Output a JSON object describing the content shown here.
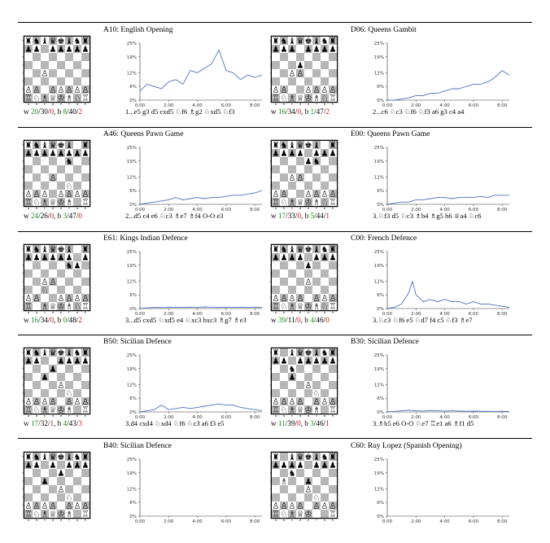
{
  "panels": [
    {
      "title": "A10: English Opening",
      "fen": "rnbqkbnr/pp1ppppp/8/8/2P5/8/PP1PPPPP/RNBQKBNR",
      "stats": {
        "w_wins": "20",
        "w_draws": "30",
        "w_losses": "0",
        "b_wins": "8",
        "b_draws": "40",
        "b_losses": "2"
      },
      "moves": "1...e5 g3 d5 cxd5 ♘f6 ♗g2 ♘xd5 ♘f3",
      "chart_data": {
        "type": "line",
        "xlim": [
          0,
          510
        ],
        "ylim": [
          0,
          25
        ],
        "xticks": [
          0,
          120,
          240,
          360,
          480
        ],
        "xtick_labels": [
          "0:00",
          "2:00",
          "4:00",
          "6:00",
          "8:00"
        ],
        "yticks": [
          0,
          6,
          12,
          19,
          25
        ],
        "ytick_labels": [
          "0%",
          "6%",
          "12%",
          "19%",
          "25%"
        ],
        "x": [
          0,
          30,
          60,
          90,
          120,
          150,
          180,
          210,
          240,
          270,
          300,
          330,
          360,
          390,
          420,
          450,
          480,
          510
        ],
        "y": [
          4,
          7,
          6,
          5,
          8,
          9,
          7,
          13,
          12,
          14,
          16,
          22,
          13,
          12,
          9,
          11,
          10,
          11
        ]
      }
    },
    {
      "title": "D06: Queens Gambit",
      "fen": "rnbqkbnr/ppp1pppp/8/3p4/2PP4/8/PP2PPPP/RNBQKBNR",
      "stats": {
        "w_wins": "16",
        "w_draws": "34",
        "w_losses": "0",
        "b_wins": "1",
        "b_draws": "47",
        "b_losses": "2"
      },
      "moves": "2...c6 ♘c3 ♘f6 ♘f3 a6 g3 c4 a4",
      "chart_data": {
        "type": "line",
        "xlim": [
          0,
          510
        ],
        "ylim": [
          0,
          25
        ],
        "xticks": [
          0,
          120,
          240,
          360,
          480
        ],
        "xtick_labels": [
          "0:00",
          "2:00",
          "4:00",
          "6:00",
          "8:00"
        ],
        "yticks": [
          0,
          6,
          12,
          19,
          25
        ],
        "ytick_labels": [
          "0%",
          "6%",
          "12%",
          "19%",
          "25%"
        ],
        "x": [
          0,
          30,
          60,
          90,
          120,
          150,
          180,
          210,
          240,
          270,
          300,
          330,
          360,
          390,
          420,
          450,
          480,
          510
        ],
        "y": [
          0,
          0,
          0.5,
          1,
          2,
          2,
          3,
          3,
          4,
          5,
          5,
          6,
          7,
          7,
          8,
          10,
          13,
          11
        ]
      }
    },
    {
      "title": "A46: Queens Pawn Game",
      "fen": "rnbqkb1r/pppppppp/5n2/8/3P4/5N2/PPP1PPPP/RNBQKB1R",
      "stats": {
        "w_wins": "24",
        "w_draws": "26",
        "w_losses": "0",
        "b_wins": "3",
        "b_draws": "47",
        "b_losses": "0"
      },
      "moves": "2...d5 c4 e6 ♘c3 ♗e7 ♗f4 O-O e3",
      "chart_data": {
        "type": "line",
        "xlim": [
          0,
          510
        ],
        "ylim": [
          0,
          25
        ],
        "xticks": [
          0,
          120,
          240,
          360,
          480
        ],
        "xtick_labels": [
          "0:00",
          "2:00",
          "4:00",
          "6:00",
          "8:00"
        ],
        "yticks": [
          0,
          6,
          12,
          19,
          25
        ],
        "ytick_labels": [
          "0%",
          "6%",
          "12%",
          "19%",
          "25%"
        ],
        "x": [
          0,
          30,
          60,
          90,
          120,
          150,
          180,
          210,
          240,
          270,
          300,
          330,
          360,
          390,
          420,
          450,
          480,
          510
        ],
        "y": [
          0,
          0.5,
          1,
          1.5,
          2,
          3,
          2,
          2.5,
          3,
          2.5,
          3,
          3,
          3.5,
          4,
          4,
          4.5,
          5,
          6
        ]
      }
    },
    {
      "title": "E00: Queens Pawn Game",
      "fen": "rnbqkb1r/pppp1ppp/4pn2/8/2PP4/8/PP2PPPP/RNBQKBNR",
      "stats": {
        "w_wins": "17",
        "w_draws": "33",
        "w_losses": "0",
        "b_wins": "5",
        "b_draws": "44",
        "b_losses": "1"
      },
      "moves": "3.♘f3 d5 ♘c3 ♗b4 ♗g5 h6 ♕a4 ♘c6",
      "chart_data": {
        "type": "line",
        "xlim": [
          0,
          510
        ],
        "ylim": [
          0,
          25
        ],
        "xticks": [
          0,
          120,
          240,
          360,
          480
        ],
        "xtick_labels": [
          "0:00",
          "2:00",
          "4:00",
          "6:00",
          "8:00"
        ],
        "yticks": [
          0,
          6,
          12,
          19,
          25
        ],
        "ytick_labels": [
          "0%",
          "6%",
          "12%",
          "19%",
          "25%"
        ],
        "x": [
          0,
          30,
          60,
          90,
          120,
          150,
          180,
          210,
          240,
          270,
          300,
          330,
          360,
          390,
          420,
          450,
          480,
          510
        ],
        "y": [
          0,
          0.5,
          1,
          1,
          2,
          2,
          2.5,
          3,
          3,
          2.5,
          3,
          3,
          3,
          3.5,
          3,
          4,
          4,
          4
        ]
      }
    },
    {
      "title": "E61: Kings Indian Defence",
      "fen": "rnbqkb1r/pppppp1p/5np1/8/2PP4/2N5/PP2PPPP/R1BQKBNR",
      "stats": {
        "w_wins": "16",
        "w_draws": "34",
        "w_losses": "0",
        "b_wins": "0",
        "b_draws": "48",
        "b_losses": "2"
      },
      "moves": "3...d5 cxd5 ♘xd5 e4 ♘xc3 bxc3 ♗g7 ♗e3",
      "chart_data": {
        "type": "line",
        "xlim": [
          0,
          510
        ],
        "ylim": [
          0,
          25
        ],
        "xticks": [
          0,
          120,
          240,
          360,
          480
        ],
        "xtick_labels": [
          "0:00",
          "2:00",
          "4:00",
          "6:00",
          "8:00"
        ],
        "yticks": [
          0,
          6,
          12,
          19,
          25
        ],
        "ytick_labels": [
          "0%",
          "6%",
          "12%",
          "19%",
          "25%"
        ],
        "x": [
          0,
          30,
          60,
          90,
          120,
          150,
          180,
          210,
          240,
          270,
          300,
          330,
          360,
          390,
          420,
          450,
          480,
          510
        ],
        "y": [
          0,
          0.3,
          0.5,
          0.4,
          0.6,
          0.5,
          0.5,
          0.6,
          0.5,
          0.7,
          0.6,
          0.5,
          0.6,
          0.5,
          0.6,
          0.5,
          0.6,
          0.5
        ]
      }
    },
    {
      "title": "C00: French Defence",
      "fen": "rnbqkbnr/pppp1ppp/4p3/8/4P3/8/PPPP1PPP/RNBQKBNR",
      "stats": {
        "w_wins": "39",
        "w_draws": "11",
        "w_losses": "0",
        "b_wins": "4",
        "b_draws": "46",
        "b_losses": "0"
      },
      "moves": "3.♘c3 ♘f6 e5 ♘d7 f4 c5 ♘f3 ♗e7",
      "chart_data": {
        "type": "line",
        "xlim": [
          0,
          510
        ],
        "ylim": [
          0,
          25
        ],
        "xticks": [
          0,
          120,
          240,
          360,
          480
        ],
        "xtick_labels": [
          "0:00",
          "2:00",
          "4:00",
          "6:00",
          "8:00"
        ],
        "yticks": [
          0,
          6,
          12,
          19,
          25
        ],
        "ytick_labels": [
          "0%",
          "6%",
          "12%",
          "19%",
          "25%"
        ],
        "x": [
          0,
          30,
          60,
          90,
          105,
          120,
          150,
          180,
          210,
          240,
          270,
          300,
          330,
          360,
          390,
          420,
          450,
          480,
          510
        ],
        "y": [
          0,
          0.5,
          2,
          7,
          12,
          6,
          3,
          4,
          3,
          4,
          3,
          3,
          2,
          3,
          2,
          2,
          1.5,
          1,
          0.5
        ]
      }
    },
    {
      "title": "B50: Sicilian Defence",
      "fen": "rnbqkbnr/pp2pppp/3p4/2p5/4P3/5N2/PPPP1PPP/RNBQKB1R",
      "stats": {
        "w_wins": "17",
        "w_draws": "32",
        "w_losses": "1",
        "b_wins": "4",
        "b_draws": "43",
        "b_losses": "3"
      },
      "moves": "3.d4 cxd4 ♘xd4 ♘f6 ♘c3 a6 f3 e5",
      "chart_data": {
        "type": "line",
        "xlim": [
          0,
          510
        ],
        "ylim": [
          0,
          25
        ],
        "xticks": [
          0,
          120,
          240,
          360,
          480
        ],
        "xtick_labels": [
          "0:00",
          "2:00",
          "4:00",
          "6:00",
          "8:00"
        ],
        "yticks": [
          0,
          6,
          12,
          19,
          25
        ],
        "ytick_labels": [
          "0%",
          "6%",
          "12%",
          "19%",
          "25%"
        ],
        "x": [
          0,
          30,
          60,
          90,
          120,
          150,
          180,
          210,
          240,
          270,
          300,
          330,
          360,
          390,
          420,
          450,
          480,
          510
        ],
        "y": [
          0,
          0.5,
          1,
          3,
          1,
          1.5,
          2,
          1.5,
          2,
          2.5,
          3,
          3.5,
          3,
          3,
          2,
          1.5,
          1,
          0.5
        ]
      }
    },
    {
      "title": "B30: Sicilian Defence",
      "fen": "r1bqkbnr/pp1ppppp/2n5/2p5/4P3/5N2/PPPP1PPP/RNBQKB1R",
      "stats": {
        "w_wins": "11",
        "w_draws": "39",
        "w_losses": "0",
        "b_wins": "3",
        "b_draws": "46",
        "b_losses": "1"
      },
      "moves": "3.♗b5 e6 O-O ♘e7 ♖e1 a6 ♗f1 d5",
      "chart_data": {
        "type": "line",
        "xlim": [
          0,
          510
        ],
        "ylim": [
          0,
          25
        ],
        "xticks": [
          0,
          120,
          240,
          360,
          480
        ],
        "xtick_labels": [
          "0:00",
          "2:00",
          "4:00",
          "6:00",
          "8:00"
        ],
        "yticks": [
          0,
          6,
          12,
          19,
          25
        ],
        "ytick_labels": [
          "0%",
          "6%",
          "12%",
          "19%",
          "25%"
        ],
        "x": [
          0,
          30,
          60,
          90,
          120,
          150,
          180,
          210,
          240,
          270,
          300,
          330,
          360,
          390,
          420,
          450,
          480,
          510
        ],
        "y": [
          0,
          0.2,
          0.5,
          0.8,
          0.5,
          0.4,
          0.6,
          0.5,
          0.4,
          0.5,
          0.4,
          0.3,
          0.4,
          0.3,
          0.3,
          0.2,
          0.3,
          0.2
        ]
      }
    },
    {
      "title": "B40: Sicilian Defence",
      "fen": "rnbqkbnr/pp1p1ppp/4p3/2p5/4P3/5N2/PPPP1PPP/RNBQKB1R",
      "stats": null,
      "moves": "",
      "chart_data": {
        "type": "line",
        "xlim": [
          0,
          510
        ],
        "ylim": [
          0,
          25
        ],
        "xticks": [
          0,
          120,
          240,
          360,
          480
        ],
        "xtick_labels": [
          "0:00",
          "2:00",
          "4:00",
          "6:00",
          "8:00"
        ],
        "yticks": [
          0,
          6,
          12,
          19,
          25
        ],
        "ytick_labels": [
          "0%",
          "6%",
          "12%",
          "19%",
          "25%"
        ],
        "x": [],
        "y": []
      }
    },
    {
      "title": "C60: Ruy Lopez (Spanish Opening)",
      "fen": "r1bqkbnr/pppp1ppp/2n5/1B2p3/4P3/5N2/PPPP1PPP/RNBQK2R",
      "stats": null,
      "moves": "",
      "chart_data": {
        "type": "line",
        "xlim": [
          0,
          510
        ],
        "ylim": [
          0,
          25
        ],
        "xticks": [
          0,
          120,
          240,
          360,
          480
        ],
        "xtick_labels": [
          "0:00",
          "2:00",
          "4:00",
          "6:00",
          "8:00"
        ],
        "yticks": [
          0,
          6,
          12,
          19,
          25
        ],
        "ytick_labels": [
          "0%",
          "6%",
          "12%",
          "19%",
          "25%"
        ],
        "x": [],
        "y": []
      }
    }
  ],
  "board_style": {
    "light": "#ffffff",
    "dark": "#b7b7b7",
    "border": "#000000",
    "line_color": "#4a72c0"
  },
  "board_labels": {
    "files": [
      "a",
      "b",
      "c",
      "d",
      "e",
      "f",
      "g",
      "h"
    ],
    "ranks": [
      "8",
      "7",
      "6",
      "5",
      "4",
      "3",
      "2",
      "1"
    ]
  }
}
